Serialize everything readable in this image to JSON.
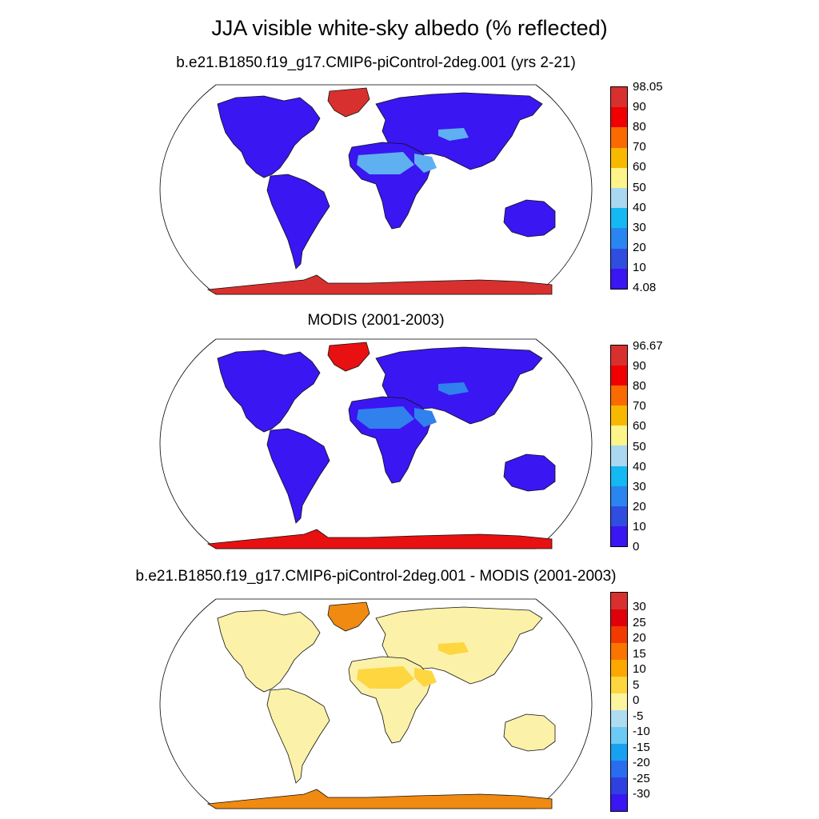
{
  "figure": {
    "title": "JJA visible white-sky albedo (% reflected)"
  },
  "panels": [
    {
      "title": "b.e21.B1850.f19_g17.CMIP6-piControl-2deg.001 (yrs 2-21)",
      "colorbar_labels": [
        "98.05",
        "90",
        "80",
        "70",
        "60",
        "50",
        "40",
        "30",
        "20",
        "10",
        "4.08"
      ],
      "colorbar_colors": [
        "#d8302e",
        "#f00000",
        "#fa6a00",
        "#f9b800",
        "#fdf48a",
        "#a9d8f0",
        "#14b8f2",
        "#2b85f0",
        "#2f4ee0",
        "#3a16f2"
      ],
      "land_color": "#3a16f2",
      "desert_color": "#5fb0f0",
      "ice_color": "#d8302e"
    },
    {
      "title": "MODIS (2001-2003)",
      "colorbar_labels": [
        "96.67",
        "90",
        "80",
        "70",
        "60",
        "50",
        "40",
        "30",
        "20",
        "10",
        "0"
      ],
      "colorbar_colors": [
        "#d8302e",
        "#f00000",
        "#fa6a00",
        "#f9b800",
        "#fdf48a",
        "#a9d8f0",
        "#14b8f2",
        "#2b85f0",
        "#2f4ee0",
        "#3a16f2"
      ],
      "land_color": "#3a16f2",
      "desert_color": "#3080ee",
      "ice_color": "#e81010"
    },
    {
      "title": "b.e21.B1850.f19_g17.CMIP6-piControl-2deg.001 - MODIS (2001-2003)",
      "colorbar_labels": [
        "30",
        "25",
        "20",
        "15",
        "10",
        "5",
        "0",
        "-5",
        "-10",
        "-15",
        "-20",
        "-25",
        "-30"
      ],
      "colorbar_colors": [
        "#d8302e",
        "#e0000a",
        "#f03a00",
        "#fa7400",
        "#fca800",
        "#fdd640",
        "#fdf4a0",
        "#b0dcf2",
        "#6ccaf4",
        "#1aa0f0",
        "#2a6cf0",
        "#2e40e0",
        "#3a16f2"
      ],
      "land_color": "#fbf1a8",
      "desert_color": "#fdd640",
      "ice_color": "#f08a10"
    }
  ]
}
